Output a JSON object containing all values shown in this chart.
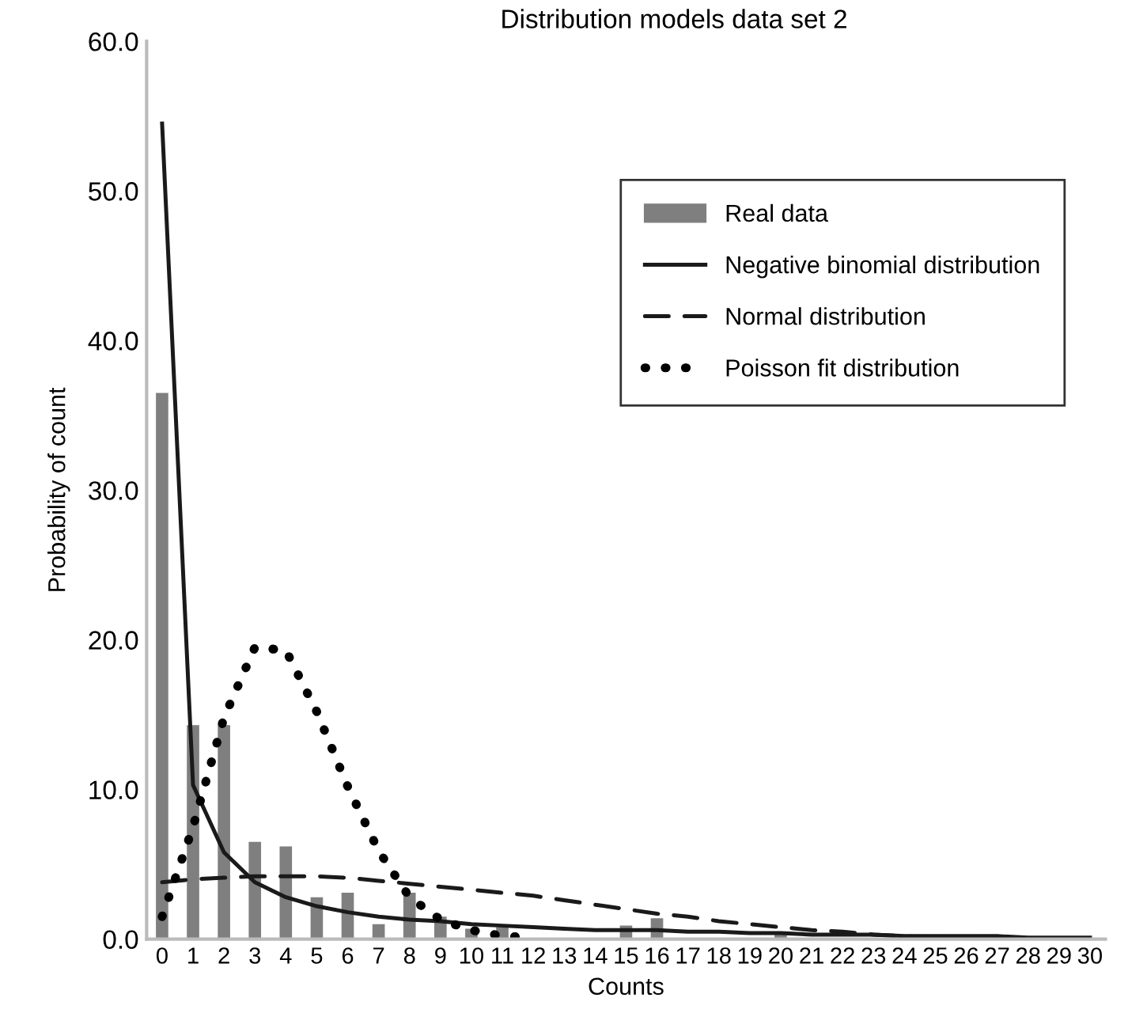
{
  "chart_data": {
    "type": "bar",
    "title": "Distribution models data set 2",
    "xlabel": "Counts",
    "ylabel": "Probability of count",
    "categories": [
      "0",
      "1",
      "2",
      "3",
      "4",
      "5",
      "6",
      "7",
      "8",
      "9",
      "10",
      "11",
      "12",
      "13",
      "14",
      "15",
      "16",
      "17",
      "18",
      "19",
      "20",
      "21",
      "22",
      "23",
      "24",
      "25",
      "26",
      "27",
      "28",
      "29",
      "30"
    ],
    "series": [
      {
        "name": "Real data",
        "color": "#7f7f7f",
        "values": [
          36.5,
          14.3,
          14.3,
          6.5,
          6.2,
          2.8,
          3.1,
          1.0,
          3.1,
          1.5,
          0.7,
          0.8,
          0,
          0,
          0,
          0.9,
          1.4,
          0,
          0,
          0,
          0.3,
          null,
          null,
          0,
          0,
          0,
          0,
          0,
          0,
          0,
          0
        ]
      },
      {
        "name": "Negative binomial distribution",
        "type": "line",
        "color": "#1a1a1a",
        "line_style": "solid",
        "values": [
          54.5,
          10.3,
          5.8,
          3.8,
          2.8,
          2.2,
          1.8,
          1.5,
          1.3,
          1.2,
          1.0,
          0.9,
          0.8,
          0.7,
          0.6,
          0.6,
          0.6,
          0.5,
          0.5,
          0.4,
          0.4,
          0.3,
          0.3,
          0.3,
          0.2,
          0.2,
          0.2,
          0.2,
          0.1,
          0.1,
          0.1
        ]
      },
      {
        "name": "Normal distribution",
        "type": "line",
        "color": "#1a1a1a",
        "line_style": "dashed",
        "values": [
          3.8,
          4.0,
          4.1,
          4.2,
          4.2,
          4.2,
          4.1,
          3.9,
          3.7,
          3.5,
          3.3,
          3.1,
          2.9,
          2.6,
          2.3,
          2.0,
          1.7,
          1.5,
          1.2,
          1.0,
          0.8,
          0.6,
          0.5,
          0.3,
          0.2,
          0.1,
          0.1,
          0.0,
          0.0,
          0.0,
          0.0
        ]
      },
      {
        "name": "Poisson fit distribution",
        "type": "line",
        "color": "#000000",
        "line_style": "dotted",
        "values": [
          1.5,
          7.5,
          14.8,
          19.5,
          19.3,
          15.2,
          10.2,
          5.9,
          2.8,
          1.3,
          0.6,
          0.2,
          0.1,
          null,
          null,
          null,
          null,
          null,
          null,
          null,
          null,
          null,
          null,
          null,
          null,
          null,
          null,
          null,
          null,
          null,
          null
        ]
      }
    ],
    "ylim": [
      0,
      60
    ],
    "yticks": [
      {
        "value": 0,
        "label": "0.0"
      },
      {
        "value": 10,
        "label": "10.0"
      },
      {
        "value": 20,
        "label": "20.0"
      },
      {
        "value": 30,
        "label": "30.0"
      },
      {
        "value": 40,
        "label": "40.0"
      },
      {
        "value": 50,
        "label": "50.0"
      },
      {
        "value": 60,
        "label": "60.0"
      }
    ],
    "grid": false,
    "legend": "right"
  }
}
